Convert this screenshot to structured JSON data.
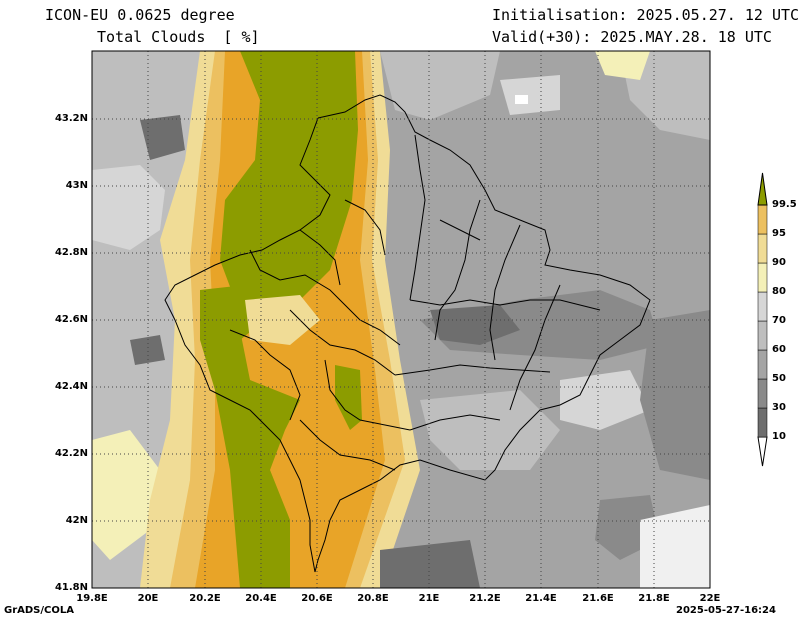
{
  "header": {
    "model": "ICON-EU 0.0625 degree",
    "field": "Total Clouds  [ %]",
    "init": "Initialisation: 2025.05.27. 12 UTC",
    "valid": "Valid(+30): 2025.MAY.28. 18 UTC"
  },
  "footer": {
    "credit": "GrADS/COLA",
    "timestamp": "2025-05-27-16:24"
  },
  "axes": {
    "lat_labels": [
      "43.2N",
      "43N",
      "42.8N",
      "42.6N",
      "42.4N",
      "42.2N",
      "42N",
      "41.8N"
    ],
    "lat_values": [
      43.2,
      43.0,
      42.8,
      42.6,
      42.4,
      42.2,
      42.0,
      41.8
    ],
    "lon_labels": [
      "19.8E",
      "20E",
      "20.2E",
      "20.4E",
      "20.6E",
      "20.8E",
      "21E",
      "21.2E",
      "21.4E",
      "21.6E",
      "21.8E",
      "22E"
    ],
    "lon_values": [
      19.8,
      20.0,
      20.2,
      20.4,
      20.6,
      20.8,
      21.0,
      21.2,
      21.4,
      21.6,
      21.8,
      22.0
    ],
    "lat_range": [
      41.8,
      43.4
    ],
    "lon_range": [
      19.8,
      22.0
    ],
    "grid": true
  },
  "colorbar": {
    "labels": [
      "99.5",
      "95",
      "90",
      "80",
      "70",
      "60",
      "50",
      "30",
      "10"
    ],
    "colors": [
      "#f0f0f0",
      "#6e6e6e",
      "#8a8a8a",
      "#a4a4a4",
      "#bebebe",
      "#d6d6d6",
      "#f4f0b8",
      "#f0dc96",
      "#ecc060",
      "#e8a428",
      "#8c9c00"
    ]
  }
}
